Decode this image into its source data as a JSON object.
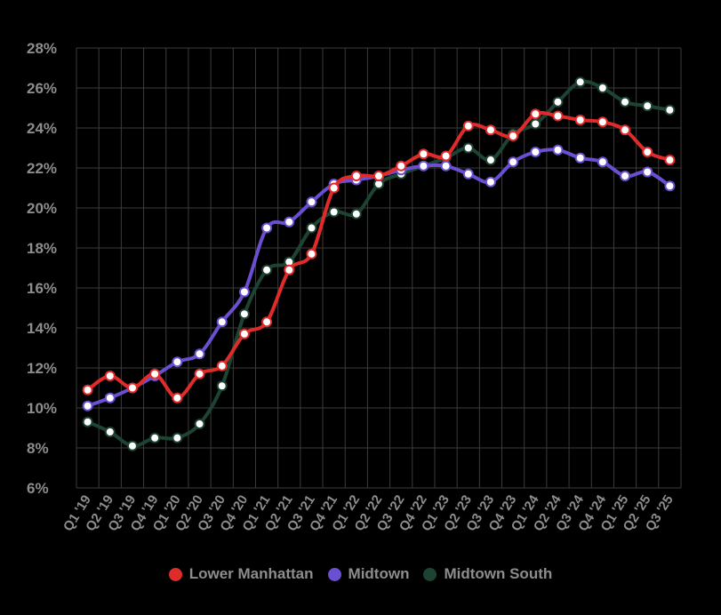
{
  "chart_data": {
    "type": "line",
    "title": "",
    "xlabel": "",
    "ylabel": "",
    "ylim": [
      6,
      28
    ],
    "y_ticks": [
      "6%",
      "8%",
      "10%",
      "12%",
      "14%",
      "16%",
      "18%",
      "20%",
      "22%",
      "24%",
      "26%",
      "28%"
    ],
    "grid": true,
    "legend_position": "bottom",
    "categories": [
      "Q1 '19",
      "Q2 '19",
      "Q3 '19",
      "Q4 '19",
      "Q1 '20",
      "Q2 '20",
      "Q3 '20",
      "Q4 '20",
      "Q1 '21",
      "Q2 '21",
      "Q3 '21",
      "Q4 '21",
      "Q1 '22",
      "Q2 '22",
      "Q3 '22",
      "Q4 '22",
      "Q1 '23",
      "Q2 '23",
      "Q3 '23",
      "Q4 '23",
      "Q1 '24",
      "Q2 '24",
      "Q3 '24",
      "Q4 '24",
      "Q1 '25",
      "Q2 '25",
      "Q3 '25"
    ],
    "series": [
      {
        "name": "Lower Manhattan",
        "color": "#e02b2b",
        "values": [
          10.9,
          11.6,
          11.0,
          11.7,
          10.5,
          11.7,
          12.1,
          13.7,
          14.3,
          16.9,
          17.7,
          21.0,
          21.6,
          21.6,
          22.1,
          22.7,
          22.6,
          24.1,
          23.9,
          23.6,
          24.7,
          24.6,
          24.4,
          24.3,
          23.9,
          22.8,
          22.4
        ]
      },
      {
        "name": "Midtown",
        "color": "#6a4fd0",
        "values": [
          10.1,
          10.5,
          11.0,
          11.6,
          12.3,
          12.7,
          14.3,
          15.8,
          19.0,
          19.3,
          20.3,
          21.2,
          21.4,
          21.6,
          21.9,
          22.1,
          22.1,
          21.7,
          21.3,
          22.3,
          22.8,
          22.9,
          22.5,
          22.3,
          21.6,
          21.8,
          21.1
        ]
      },
      {
        "name": "Midtown South",
        "color": "#1d4433",
        "values": [
          9.3,
          8.8,
          8.1,
          8.5,
          8.5,
          9.2,
          11.1,
          14.7,
          16.9,
          17.3,
          19.0,
          19.8,
          19.7,
          21.2,
          21.7,
          22.1,
          22.5,
          23.0,
          22.4,
          23.7,
          24.2,
          25.3,
          26.3,
          26.0,
          25.3,
          25.1,
          24.9
        ]
      }
    ]
  }
}
